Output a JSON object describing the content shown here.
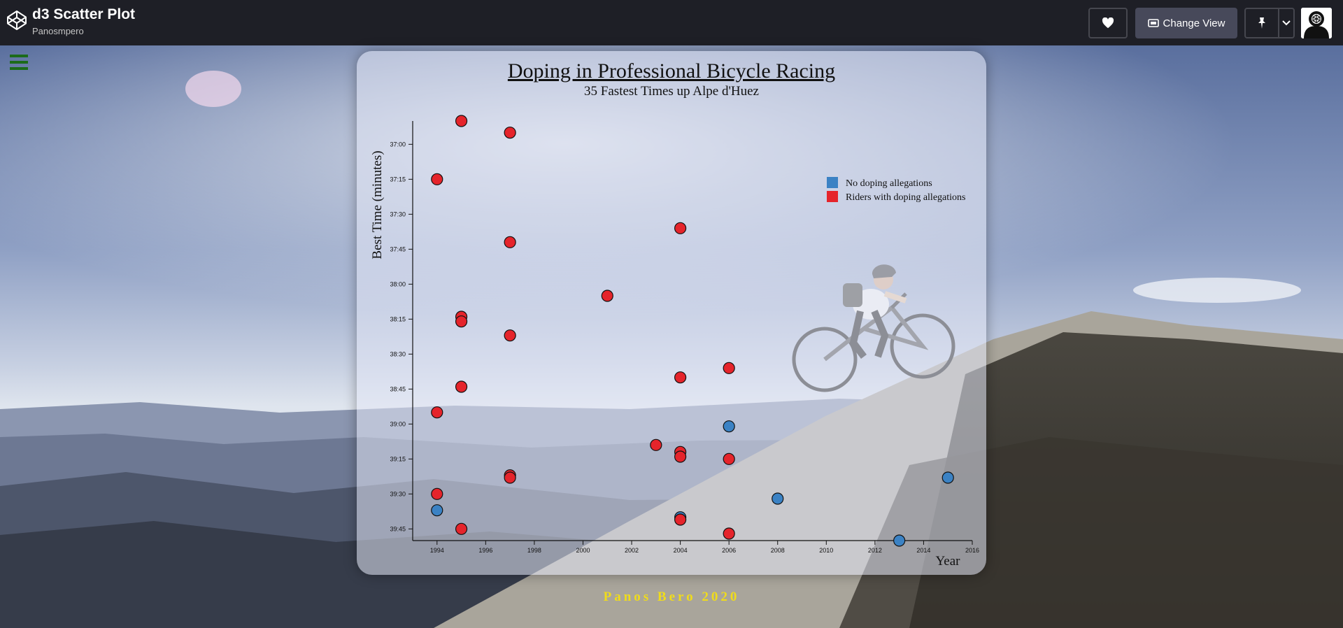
{
  "header": {
    "title": "d3 Scatter Plot",
    "author": "Panosmpero",
    "change_view_label": "Change View",
    "icons": [
      "codepen-icon",
      "heart-icon",
      "change-view-icon",
      "pin-icon",
      "chevron-down-icon",
      "avatar"
    ]
  },
  "colors": {
    "no_doping": "#3b82c4",
    "doping": "#e5242b",
    "footer": "#f0dc1a"
  },
  "footer": {
    "text": "Panos Bero 2020"
  },
  "chart_data": {
    "type": "scatter",
    "title": "Doping in Professional Bicycle Racing",
    "subtitle": "35 Fastest Times up Alpe d'Huez",
    "xlabel": "Year",
    "ylabel": "Best Time (minutes)",
    "xlim": [
      1993,
      2016
    ],
    "ylim_seconds": [
      2210,
      2390
    ],
    "x_ticks": [
      "1994",
      "1996",
      "1998",
      "2000",
      "2002",
      "2004",
      "2006",
      "2008",
      "2010",
      "2012",
      "2014",
      "2016"
    ],
    "y_ticks": [
      "37:00",
      "37:15",
      "37:30",
      "37:45",
      "38:00",
      "38:15",
      "38:30",
      "38:45",
      "39:00",
      "39:15",
      "39:30",
      "39:45"
    ],
    "legend": {
      "placement": "top-right",
      "entries": [
        {
          "label": "No doping allegations",
          "key": "no_doping"
        },
        {
          "label": "Riders with doping allegations",
          "key": "doping"
        }
      ]
    },
    "points": [
      {
        "year": 1995,
        "time": "36:50",
        "doping": true
      },
      {
        "year": 1997,
        "time": "36:55",
        "doping": true
      },
      {
        "year": 1994,
        "time": "37:15",
        "doping": true
      },
      {
        "year": 2004,
        "time": "37:36",
        "doping": true
      },
      {
        "year": 1997,
        "time": "37:42",
        "doping": true
      },
      {
        "year": 2001,
        "time": "38:05",
        "doping": true
      },
      {
        "year": 1995,
        "time": "38:14",
        "doping": true
      },
      {
        "year": 1995,
        "time": "38:16",
        "doping": true
      },
      {
        "year": 1997,
        "time": "38:22",
        "doping": true
      },
      {
        "year": 2006,
        "time": "38:36",
        "doping": true
      },
      {
        "year": 2004,
        "time": "38:40",
        "doping": true
      },
      {
        "year": 1995,
        "time": "38:44",
        "doping": true
      },
      {
        "year": 1994,
        "time": "38:55",
        "doping": true
      },
      {
        "year": 2006,
        "time": "39:01",
        "doping": false
      },
      {
        "year": 2003,
        "time": "39:09",
        "doping": true
      },
      {
        "year": 2004,
        "time": "39:12",
        "doping": true
      },
      {
        "year": 2004,
        "time": "39:14",
        "doping": true
      },
      {
        "year": 2006,
        "time": "39:15",
        "doping": true
      },
      {
        "year": 1997,
        "time": "39:22",
        "doping": true
      },
      {
        "year": 1997,
        "time": "39:23",
        "doping": true
      },
      {
        "year": 2015,
        "time": "39:23",
        "doping": false
      },
      {
        "year": 1994,
        "time": "39:30",
        "doping": true
      },
      {
        "year": 2008,
        "time": "39:32",
        "doping": false
      },
      {
        "year": 1994,
        "time": "39:37",
        "doping": false
      },
      {
        "year": 2004,
        "time": "39:40",
        "doping": false
      },
      {
        "year": 2004,
        "time": "39:41",
        "doping": true
      },
      {
        "year": 1995,
        "time": "39:45",
        "doping": true
      },
      {
        "year": 2006,
        "time": "39:47",
        "doping": true
      },
      {
        "year": 2013,
        "time": "39:50",
        "doping": false
      }
    ]
  }
}
